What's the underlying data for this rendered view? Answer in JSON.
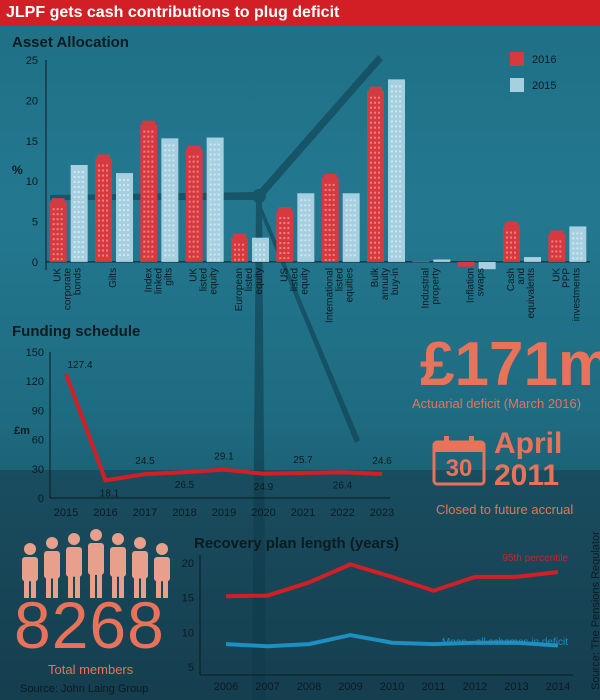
{
  "header": {
    "title": "JLPF gets cash contributions to plug deficit"
  },
  "asset_allocation": {
    "title": "Asset Allocation",
    "ylabel": "%"
  },
  "funding": {
    "title": "Funding schedule",
    "ylabel": "£m"
  },
  "deficit": {
    "value": "£171m",
    "label": "Actuarial deficit (March 2016)"
  },
  "closed": {
    "day": "30",
    "month": "April",
    "year": "2011",
    "label": "Closed to future accrual"
  },
  "members": {
    "value": "8268",
    "label": "Total members",
    "source": "Source: John Laing Group"
  },
  "recovery": {
    "title": "Recovery plan length (years)",
    "source": "Source: The Pensions Regulator"
  },
  "chart_data": [
    {
      "type": "bar",
      "title": "Asset Allocation",
      "ylabel": "%",
      "ylim": [
        -1,
        25
      ],
      "yticks": [
        0,
        5,
        10,
        15,
        20,
        25
      ],
      "legend_position": "top-right",
      "colors": {
        "2016": "#d63a3f",
        "2015": "#a6cfe0"
      },
      "categories": [
        "UK corporate bonds",
        "Gilts",
        "Index linked gilts",
        "UK listed equity",
        "European listed equity",
        "US listed equity",
        "International listed equities",
        "Bulk annuity buy-in",
        "Industrial property",
        "Inflation swaps",
        "Cash and equivalents",
        "UK PPP investments"
      ],
      "series": [
        {
          "name": "2016",
          "values": [
            7.4,
            12.8,
            17.0,
            13.9,
            3.0,
            6.3,
            10.4,
            21.2,
            0.1,
            -0.6,
            4.5,
            3.4
          ]
        },
        {
          "name": "2015",
          "values": [
            12.0,
            11.0,
            15.3,
            15.4,
            3.0,
            8.5,
            8.5,
            22.6,
            0.3,
            -0.9,
            0.6,
            4.4
          ]
        }
      ]
    },
    {
      "type": "line",
      "title": "Funding schedule",
      "ylabel": "£m",
      "ylim": [
        0,
        150
      ],
      "yticks": [
        0,
        30,
        60,
        90,
        120,
        150
      ],
      "x": [
        "2015",
        "2016",
        "2017",
        "2018",
        "2019",
        "2020",
        "2021",
        "2022",
        "2023"
      ],
      "values": [
        127.4,
        18.1,
        24.5,
        26.5,
        29.1,
        24.9,
        25.7,
        26.4,
        24.6
      ],
      "data_labels": [
        "127.4",
        "18.1",
        "24.5",
        "26.5",
        "29.1",
        "24.9",
        "25.7",
        "26.4",
        "24.6"
      ]
    },
    {
      "type": "line",
      "title": "Recovery plan length (years)",
      "ylim": [
        5,
        20
      ],
      "yticks": [
        5,
        10,
        15,
        20
      ],
      "x": [
        "2006",
        "2007",
        "2008",
        "2009",
        "2010",
        "2011",
        "2012",
        "2013",
        "2014"
      ],
      "series": [
        {
          "name": "95th percentile",
          "color": "#d21f26",
          "values": [
            15.2,
            15.3,
            17.2,
            19.8,
            18.0,
            16.0,
            18.0,
            18.0,
            18.7
          ]
        },
        {
          "name": "Mean - all schemes in deficit",
          "color": "#1d8fc0",
          "values": [
            8.3,
            8.0,
            8.3,
            9.6,
            8.5,
            8.3,
            8.5,
            8.5,
            8.1
          ]
        }
      ]
    }
  ]
}
